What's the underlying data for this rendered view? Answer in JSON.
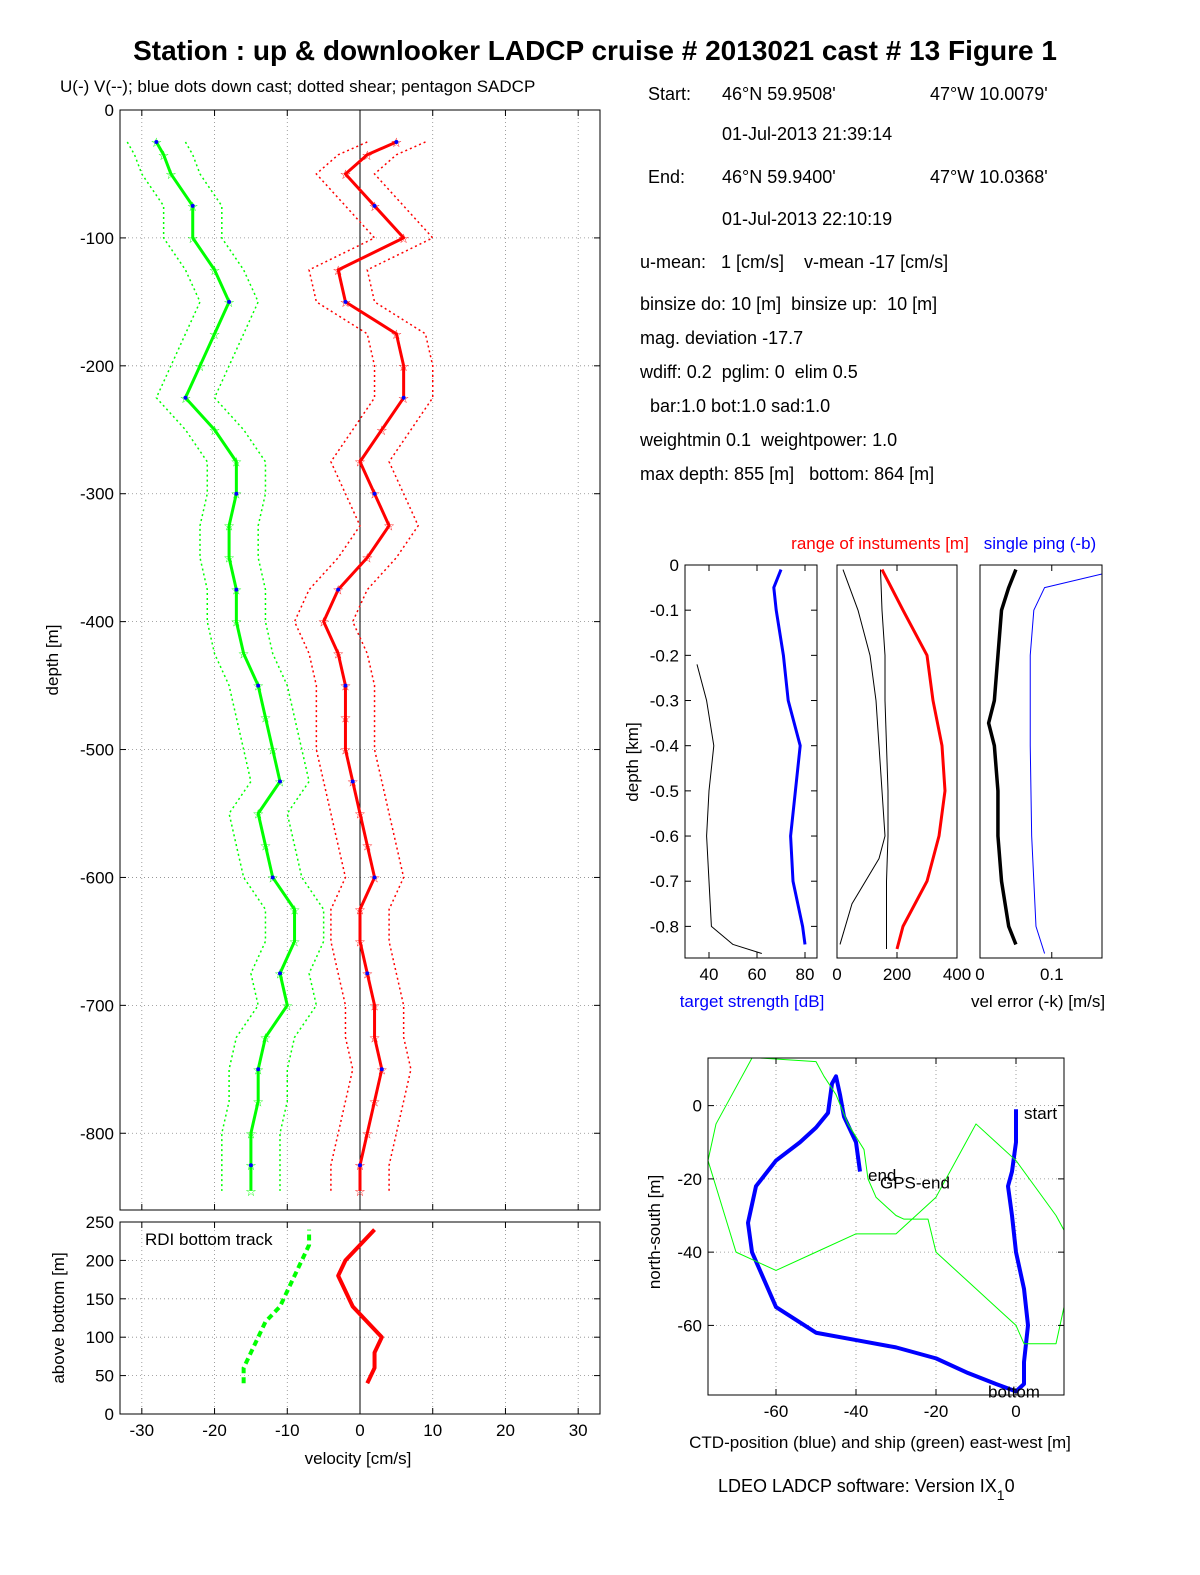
{
  "title": "Station : up & downlooker LADCP cruise # 2013021 cast # 13  Figure 1",
  "subtitle": "U(-) V(--); blue dots down cast; dotted shear; pentagon SADCP",
  "info": {
    "start_label": "Start:",
    "start_lat": "46°N 59.9508'",
    "start_lon": "47°W 10.0079'",
    "start_time": "01-Jul-2013 21:39:14",
    "end_label": "End:",
    "end_lat": "46°N 59.9400'",
    "end_lon": "47°W 10.0368'",
    "end_time": "01-Jul-2013 22:10:19",
    "means": "u-mean:   1 [cm/s]    v-mean -17 [cm/s]",
    "binsize": "binsize do: 10 [m]  binsize up:  10 [m]",
    "magdev": "mag. deviation -17.7",
    "wdiff": "wdiff: 0.2  pglim: 0  elim 0.5",
    "bar": "  bar:1.0 bot:1.0 sad:1.0",
    "weight": "weightmin 0.1  weightpower: 1.0",
    "maxdepth": "max depth: 855 [m]   bottom: 864 [m]"
  },
  "footer": "LDEO LADCP software: Version IX",
  "footer_sub": "1",
  "footer_tail": "0",
  "colors": {
    "u": "#00ff00",
    "v": "#ff0000",
    "blue": "#0000ff",
    "black": "#000000",
    "yellow": "#ffff00"
  },
  "chart_data": [
    {
      "type": "line",
      "id": "velocity_profile",
      "ylabel": "depth [m]",
      "xlim": [
        -33,
        33
      ],
      "ylim": [
        -860,
        0
      ],
      "xticks": [
        -30,
        -20,
        -10,
        0,
        10,
        20,
        30
      ],
      "yticks": [
        0,
        -100,
        -200,
        -300,
        -400,
        -500,
        -600,
        -700,
        -800
      ],
      "grid": true,
      "series": [
        {
          "name": "U",
          "color": "#00ff00",
          "depth": [
            -25,
            -35,
            -50,
            -75,
            -100,
            -125,
            -150,
            -175,
            -200,
            -225,
            -250,
            -275,
            -300,
            -325,
            -350,
            -375,
            -400,
            -425,
            -450,
            -475,
            -500,
            -525,
            -550,
            -575,
            -600,
            -625,
            -650,
            -675,
            -700,
            -725,
            -750,
            -775,
            -800,
            -825,
            -845
          ],
          "values": [
            -28,
            -27,
            -26,
            -23,
            -23,
            -20,
            -18,
            -20,
            -22,
            -24,
            -20,
            -17,
            -17,
            -18,
            -18,
            -17,
            -17,
            -16,
            -14,
            -13,
            -12,
            -11,
            -14,
            -13,
            -12,
            -9,
            -9,
            -11,
            -10,
            -13,
            -14,
            -14,
            -15,
            -15,
            -15
          ]
        },
        {
          "name": "V",
          "color": "#ff0000",
          "depth": [
            -25,
            -35,
            -50,
            -75,
            -100,
            -125,
            -150,
            -175,
            -200,
            -225,
            -250,
            -275,
            -300,
            -325,
            -350,
            -375,
            -400,
            -425,
            -450,
            -475,
            -500,
            -525,
            -550,
            -575,
            -600,
            -625,
            -650,
            -675,
            -700,
            -725,
            -750,
            -775,
            -800,
            -825,
            -845
          ],
          "values": [
            5,
            1,
            -2,
            2,
            6,
            -3,
            -2,
            5,
            6,
            6,
            3,
            0,
            2,
            4,
            1,
            -3,
            -5,
            -3,
            -2,
            -2,
            -2,
            -1,
            0,
            1,
            2,
            0,
            0,
            1,
            2,
            2,
            3,
            2,
            1,
            0,
            0
          ]
        }
      ]
    },
    {
      "type": "line",
      "id": "bottom_track",
      "ylabel": "above bottom [m]",
      "xlabel": "velocity [cm/s]",
      "annotation": "RDI bottom track",
      "xlim": [
        -33,
        33
      ],
      "ylim": [
        0,
        250
      ],
      "yticks": [
        0,
        50,
        100,
        150,
        200,
        250
      ],
      "xticks": [
        -30,
        -20,
        -10,
        0,
        10,
        20,
        30
      ],
      "grid": true,
      "series": [
        {
          "name": "U",
          "color": "#00ff00",
          "height": [
            40,
            60,
            80,
            100,
            120,
            140,
            160,
            180,
            200,
            220,
            240
          ],
          "values": [
            -16,
            -16,
            -15,
            -14,
            -13,
            -11,
            -10,
            -9,
            -8,
            -7,
            -7
          ]
        },
        {
          "name": "V",
          "color": "#ff0000",
          "height": [
            40,
            60,
            80,
            100,
            120,
            140,
            160,
            180,
            200,
            220,
            240
          ],
          "values": [
            1,
            2,
            2,
            3,
            1,
            -1,
            -2,
            -3,
            -2,
            0,
            2
          ]
        }
      ]
    },
    {
      "type": "line",
      "id": "target_strength",
      "ylabel": "depth [km]",
      "xlabel": "target strength [dB]",
      "xlim": [
        30,
        85
      ],
      "ylim": [
        -0.87,
        0
      ],
      "xticks": [
        40,
        60,
        80
      ],
      "yticks": [
        0,
        -0.1,
        -0.2,
        -0.3,
        -0.4,
        -0.5,
        -0.6,
        -0.7,
        -0.8
      ],
      "series": [
        {
          "color": "#000000",
          "depth": [
            -0.22,
            -0.3,
            -0.4,
            -0.5,
            -0.6,
            -0.7,
            -0.8,
            -0.84,
            -0.86
          ],
          "values": [
            35,
            39,
            42,
            40,
            39,
            40,
            41,
            50,
            62
          ]
        },
        {
          "color": "#0000ff",
          "depth": [
            -0.01,
            -0.05,
            -0.1,
            -0.2,
            -0.3,
            -0.4,
            -0.5,
            -0.6,
            -0.7,
            -0.8,
            -0.84
          ],
          "values": [
            70,
            67,
            68,
            71,
            73,
            78,
            76,
            74,
            75,
            79,
            80
          ]
        }
      ]
    },
    {
      "type": "line",
      "id": "instrument_range",
      "title": "range of instuments [m]",
      "xlim": [
        0,
        400
      ],
      "ylim": [
        -0.87,
        0
      ],
      "xticks": [
        0,
        200,
        400
      ],
      "series": [
        {
          "color": "#000000",
          "depth": [
            -0.01,
            -0.1,
            -0.2,
            -0.3,
            -0.4,
            -0.5,
            -0.6,
            -0.65,
            -0.75,
            -0.84
          ],
          "values": [
            20,
            70,
            110,
            130,
            140,
            150,
            160,
            140,
            50,
            10
          ]
        },
        {
          "color": "#000000",
          "depth": [
            -0.01,
            -0.1,
            -0.2,
            -0.3,
            -0.4,
            -0.5,
            -0.6,
            -0.7,
            -0.85
          ],
          "values": [
            145,
            150,
            160,
            160,
            165,
            170,
            170,
            165,
            165
          ]
        },
        {
          "color": "#ff0000",
          "depth": [
            -0.01,
            -0.1,
            -0.2,
            -0.3,
            -0.4,
            -0.5,
            -0.6,
            -0.7,
            -0.8,
            -0.85
          ],
          "values": [
            150,
            220,
            300,
            320,
            350,
            360,
            340,
            300,
            220,
            200
          ]
        }
      ]
    },
    {
      "type": "line",
      "id": "vel_error",
      "title": "single ping (-b)",
      "xlabel": "vel error (-k) [m/s]",
      "xlim": [
        0,
        0.17
      ],
      "ylim": [
        -0.87,
        0
      ],
      "xticks": [
        0,
        0.1
      ],
      "series": [
        {
          "color": "#000000",
          "depth": [
            -0.01,
            -0.05,
            -0.1,
            -0.2,
            -0.3,
            -0.35,
            -0.4,
            -0.5,
            -0.6,
            -0.7,
            -0.8,
            -0.84
          ],
          "values": [
            0.05,
            0.04,
            0.03,
            0.025,
            0.02,
            0.012,
            0.02,
            0.025,
            0.025,
            0.03,
            0.04,
            0.05
          ]
        },
        {
          "color": "#0000ff",
          "depth": [
            -0.02,
            -0.05,
            -0.1,
            -0.2,
            -0.4,
            -0.6,
            -0.8,
            -0.86
          ],
          "values": [
            0.17,
            0.09,
            0.075,
            0.07,
            0.07,
            0.072,
            0.078,
            0.09
          ]
        }
      ]
    },
    {
      "type": "line",
      "id": "track",
      "xlabel": "CTD-position (blue) and ship (green) east-west [m]",
      "ylabel": "north-south [m]",
      "xlim": [
        -77,
        12
      ],
      "ylim": [
        -79,
        13
      ],
      "xticks": [
        -60,
        -40,
        -20,
        0
      ],
      "yticks": [
        0,
        -20,
        -40,
        -60
      ],
      "grid": true,
      "labels": [
        {
          "text": "start",
          "x": 2,
          "y": -2
        },
        {
          "text": "end",
          "x": -37,
          "y": -19
        },
        {
          "text": "GPS-end",
          "x": -34,
          "y": -21
        },
        {
          "text": "bottom",
          "x": -7,
          "y": -78
        }
      ],
      "series": [
        {
          "name": "CTD",
          "color": "#0000ff",
          "x": [
            0,
            0,
            -1,
            -2,
            -1,
            0,
            2,
            3,
            2,
            2,
            0,
            -5,
            -12,
            -20,
            -30,
            -40,
            -50,
            -60,
            -66,
            -67,
            -65,
            -60,
            -54,
            -50,
            -47,
            -46,
            -45,
            -44,
            -43,
            -40,
            -39
          ],
          "y": [
            -1,
            -10,
            -18,
            -22,
            -30,
            -40,
            -50,
            -60,
            -70,
            -76,
            -78,
            -76,
            -73,
            -69,
            -66,
            -64,
            -62,
            -55,
            -40,
            -32,
            -22,
            -15,
            -10,
            -6,
            -2,
            6,
            8,
            3,
            -3,
            -10,
            -18
          ]
        },
        {
          "name": "ship",
          "color": "#00ff00",
          "x": [
            -64,
            -50,
            -48,
            -45,
            -42,
            -38,
            -37,
            -35,
            -30,
            -28,
            -22,
            -20,
            -10,
            -5,
            0,
            2,
            10,
            12,
            15,
            10,
            0,
            -10,
            -20,
            -30,
            -40,
            -50,
            -60,
            -70,
            -77,
            -75,
            -70,
            -66
          ],
          "y": [
            13,
            12,
            8,
            3,
            -5,
            -12,
            -20,
            -25,
            -30,
            -31,
            -31,
            -40,
            -50,
            -55,
            -60,
            -65,
            -65,
            -55,
            -40,
            -30,
            -15,
            -5,
            -25,
            -35,
            -35,
            -40,
            -45,
            -40,
            -15,
            -5,
            5,
            13
          ]
        }
      ]
    }
  ]
}
